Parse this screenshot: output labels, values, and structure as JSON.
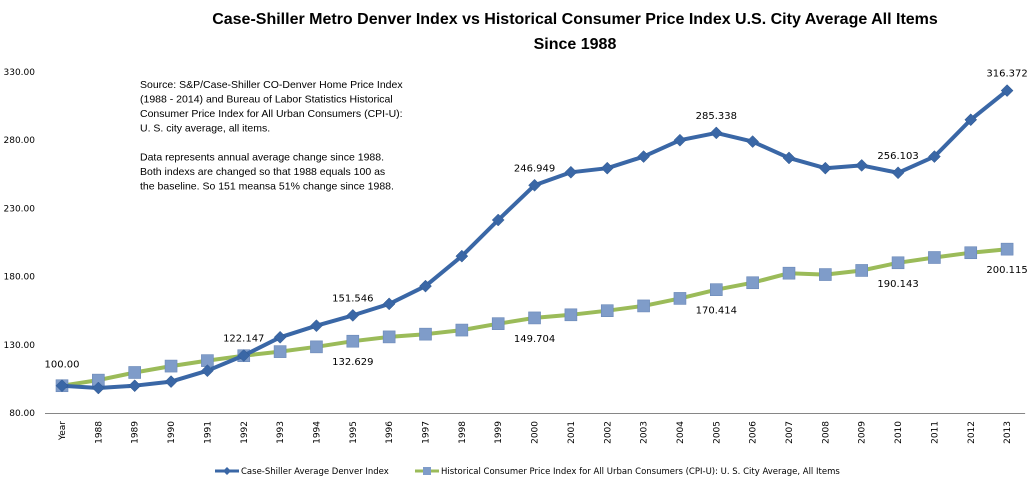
{
  "chart_data": {
    "type": "line",
    "title": "Case-Shiller Metro Denver Index vs Historical Consumer  Price Index U.S. City Average All Items",
    "subtitle": "Since 1988",
    "xlabel": "",
    "ylabel": "",
    "ylim": [
      80,
      330
    ],
    "y_ticks": [
      "80.00",
      "130.00",
      "180.00",
      "230.00",
      "280.00",
      "330.00"
    ],
    "y_tick_values": [
      80,
      130,
      180,
      230,
      280,
      330
    ],
    "grid": false,
    "legend_position": "bottom",
    "categories": [
      "Year",
      "1988",
      "1989",
      "1990",
      "1991",
      "1992",
      "1993",
      "1994",
      "1995",
      "1996",
      "1997",
      "1998",
      "1999",
      "2000",
      "2001",
      "2002",
      "2003",
      "2004",
      "2005",
      "2006",
      "2007",
      "2008",
      "2009",
      "2010",
      "2011",
      "2012",
      "2013"
    ],
    "series": [
      {
        "name": "Case-Shiller Average Denver Index",
        "color": "#3a67a6",
        "marker": "diamond",
        "values": [
          100.0,
          98.3,
          100.0,
          103.0,
          111.0,
          122.147,
          135.5,
          144.0,
          151.546,
          160.0,
          173.0,
          195.0,
          221.5,
          246.949,
          256.5,
          259.5,
          268.0,
          280.0,
          285.338,
          279.0,
          267.0,
          259.5,
          261.5,
          256.103,
          268.0,
          295.0,
          316.372
        ],
        "labels": [
          {
            "index": 5,
            "text": "122.147",
            "position": "above"
          },
          {
            "index": 8,
            "text": "151.546",
            "position": "above"
          },
          {
            "index": 13,
            "text": "246.949",
            "position": "above"
          },
          {
            "index": 18,
            "text": "285.338",
            "position": "above"
          },
          {
            "index": 23,
            "text": "256.103",
            "position": "above"
          },
          {
            "index": 26,
            "text": "316.372",
            "position": "above"
          }
        ]
      },
      {
        "name": "Historical Consumer Price Index for All Urban Consumers (CPI-U): U.S. City Average, All Items",
        "color": "#9bbb59",
        "marker_color": "#7f9cc9",
        "marker": "square",
        "values": [
          100.0,
          104.1,
          109.7,
          114.4,
          118.4,
          122.0,
          125.0,
          128.5,
          132.629,
          135.8,
          137.8,
          140.8,
          145.5,
          149.704,
          152.0,
          155.0,
          158.5,
          164.0,
          170.414,
          175.5,
          182.5,
          181.5,
          184.5,
          190.143,
          194.0,
          197.5,
          200.115
        ],
        "labels": [
          {
            "index": 0,
            "text": "100.00",
            "position": "above"
          },
          {
            "index": 8,
            "text": "132.629",
            "position": "below"
          },
          {
            "index": 13,
            "text": "149.704",
            "position": "below"
          },
          {
            "index": 18,
            "text": "170.414",
            "position": "below"
          },
          {
            "index": 23,
            "text": "190.143",
            "position": "below"
          },
          {
            "index": 26,
            "text": "200.115",
            "position": "below"
          }
        ]
      }
    ],
    "annotations": [
      {
        "lines": [
          "Source: S&P/Case-Shiller CO-Denver Home Price Index",
          "(1988 - 2014) and  Bureau of Labor Statistics Historical",
          "Consumer Price Index for All Urban Consumers (CPI-U):",
          "U. S. city average, all items."
        ]
      },
      {
        "lines": [
          "Data represents  annual average change since 1988.",
          "Both indexs are changed so that 1988 equals 100 as",
          "the baseline. So 151 meansa 51% change since 1988."
        ]
      }
    ],
    "legend": [
      {
        "label": "Case-Shiller Average Denver Index",
        "series_index": 0
      },
      {
        "label": "Historical Consumer Price Index for All Urban Consumers (CPI-U): U. S. City Average, All Items",
        "series_index": 1
      }
    ]
  }
}
